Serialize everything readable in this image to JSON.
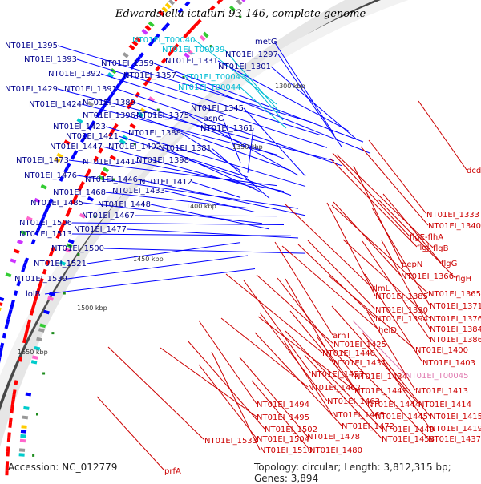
{
  "title": "Edwardsiella ictaluri 93-146, complete genome",
  "accession_text": "Accession: NC_012779",
  "summary_text": "Topology: circular; Length: 3,812,315 bp; Genes: 3,894",
  "colors": {
    "left_label": "#00008b",
    "right_label": "#cc0000",
    "trna_label": "#00bcd4",
    "pink_label": "#e07ab0",
    "backbone": "#555555",
    "forward_gene": "#ff0000",
    "reverse_gene": "#0000ff",
    "tick_mark": "#1e8c1e"
  },
  "ticks": [
    "1300 kbp",
    "1350 kbp",
    "1400 kbp",
    "1450 kbp",
    "1500 kbp",
    "1550 kbp"
  ],
  "left_labels": [
    "NT01EI_1395",
    "NT01EI_1393",
    "NT01EI_1392",
    "NT01EI_1429",
    "NT01EI_1391",
    "NT01EI_1424",
    "NT01EI_1389",
    "NT01EI_1396",
    "NT01EI_1375",
    "NT01EI_1423",
    "NT01EI_1388",
    "NT01EI_1421",
    "NT01EI_1447",
    "NT01EI_1402",
    "NT01EI_1381",
    "NT01EI_1473",
    "NT01EI_1441",
    "NT01EI_1398",
    "NT01EI_1476",
    "NT01EI_1446",
    "NT01EI_1412",
    "NT01EI_1468",
    "NT01EI_1433",
    "NT01EI_1485",
    "NT01EI_1448",
    "NT01EI_1467",
    "NT01EI_1506",
    "NT01EI_1513",
    "NT01EI_1477",
    "NT01EI_1500",
    "NT01EI_1521",
    "NT01EI_1539",
    "lolB",
    "metG",
    "NT01EI_1297",
    "NT01EI_1331",
    "NT01EI_1301",
    "NT01EI_1359",
    "NT01EI_1357",
    "NT01EI_1345",
    "asnC",
    "NT01EI_1361"
  ],
  "trna_labels": [
    "NT01EI_T00040",
    "NT01EI_T00039",
    "NT01EI_T00043",
    "NT01EI_T00044"
  ],
  "right_labels": [
    "dcd",
    "NT01EI_1333",
    "NT01EI_1340",
    "flgE-flhA",
    "flgJ",
    "flgB",
    "pepN",
    "flgG",
    "NT01EI_1366",
    "flgH",
    "rlmL",
    "NT01EI_1365",
    "NT01EI_1385",
    "NT01EI_1371",
    "NT01EI_1390",
    "NT01EI_1394",
    "NT01EI_1376",
    "helD",
    "NT01EI_1384",
    "arnT",
    "NT01EI_1386",
    "NT01EI_1425",
    "NT01EI_1400",
    "NT01EI_1440",
    "NT01EI_1431",
    "NT01EI_1403",
    "NT01EI_1457",
    "NT01EI_1434",
    "NT01EI_1462",
    "NT01EI_1443",
    "NT01EI_1413",
    "NT01EI_1494",
    "NT01EI_1463",
    "NT01EI_1444",
    "NT01EI_1414",
    "NT01EI_1495",
    "NT01EI_1465",
    "NT01EI_1445",
    "NT01EI_1415",
    "NT01EI_1502",
    "NT01EI_1472",
    "NT01EI_1449",
    "NT01EI_1419",
    "NT01EI_1504",
    "NT01EI_1478",
    "NT01EI_1458",
    "NT01EI_1437",
    "NT01EI_1533",
    "NT01EI_1510",
    "NT01EI_1480",
    "prfA"
  ],
  "pink_labels": [
    "NT01EI_T00045"
  ]
}
